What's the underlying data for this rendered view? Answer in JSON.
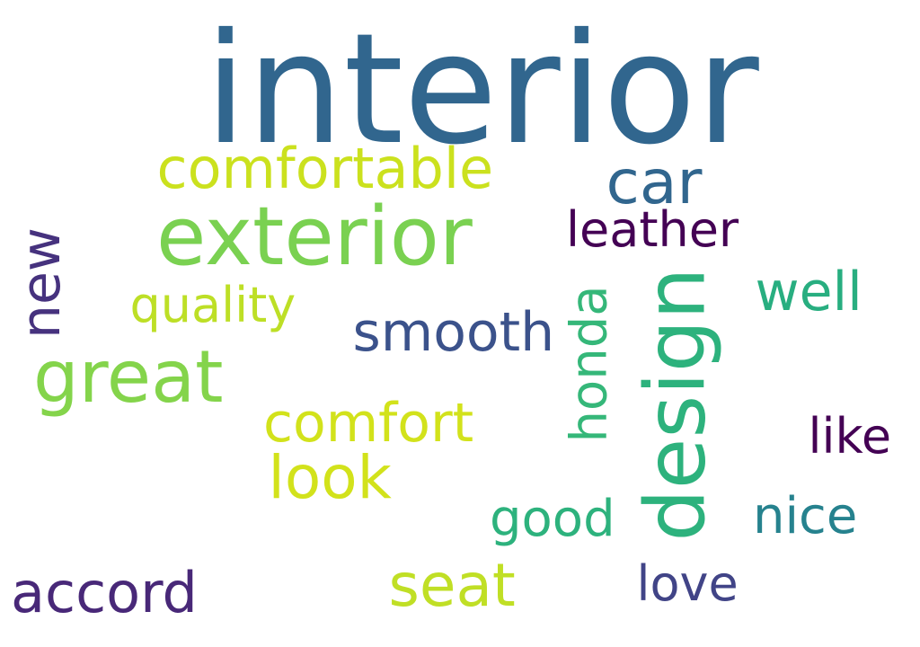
{
  "words": [
    {
      "id": "interior",
      "text": "interior",
      "color": "#31668e"
    },
    {
      "id": "comfortable",
      "text": "comfortable",
      "color": "#cbe11e"
    },
    {
      "id": "car",
      "text": "car",
      "color": "#31668e"
    },
    {
      "id": "exterior",
      "text": "exterior",
      "color": "#7ad151"
    },
    {
      "id": "leather",
      "text": "leather",
      "color": "#440154"
    },
    {
      "id": "new",
      "text": "new",
      "color": "#46327e"
    },
    {
      "id": "well",
      "text": "well",
      "color": "#28ae80"
    },
    {
      "id": "quality",
      "text": "quality",
      "color": "#bddf26"
    },
    {
      "id": "smooth",
      "text": "smooth",
      "color": "#3b528b"
    },
    {
      "id": "honda",
      "text": "honda",
      "color": "#35b779"
    },
    {
      "id": "design",
      "text": "design",
      "color": "#2db27d"
    },
    {
      "id": "great",
      "text": "great",
      "color": "#84d44b"
    },
    {
      "id": "comfort",
      "text": "comfort",
      "color": "#d2e21b"
    },
    {
      "id": "like",
      "text": "like",
      "color": "#440154"
    },
    {
      "id": "look",
      "text": "look",
      "color": "#d2e21b"
    },
    {
      "id": "good",
      "text": "good",
      "color": "#2db27d"
    },
    {
      "id": "nice",
      "text": "nice",
      "color": "#26828e"
    },
    {
      "id": "accord",
      "text": "accord",
      "color": "#482878"
    },
    {
      "id": "seat",
      "text": "seat",
      "color": "#c0df25"
    },
    {
      "id": "love",
      "text": "love",
      "color": "#414487"
    }
  ]
}
